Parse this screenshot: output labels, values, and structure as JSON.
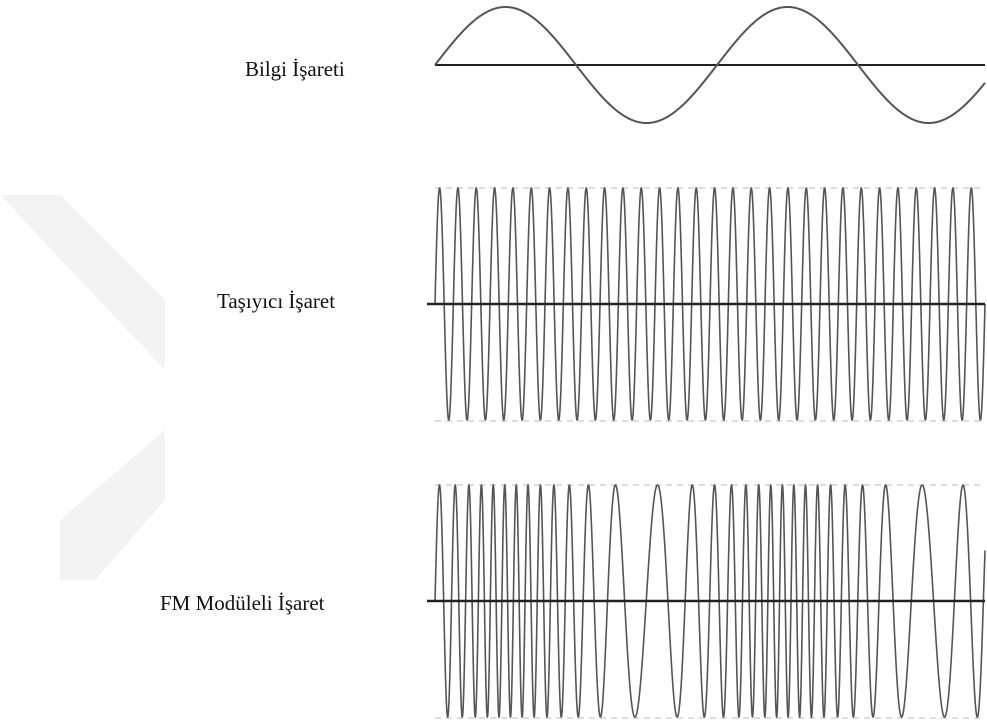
{
  "signals": {
    "info": {
      "label": "Bilgi İşareti"
    },
    "carrier": {
      "label": "Taşıyıcı İşaret"
    },
    "fm": {
      "label": "FM Modüleli İşaret"
    }
  },
  "colors": {
    "wave": "#555555",
    "axis": "#222222",
    "guide": "#bbbbbb",
    "watermark": "#f2f2f2"
  }
}
